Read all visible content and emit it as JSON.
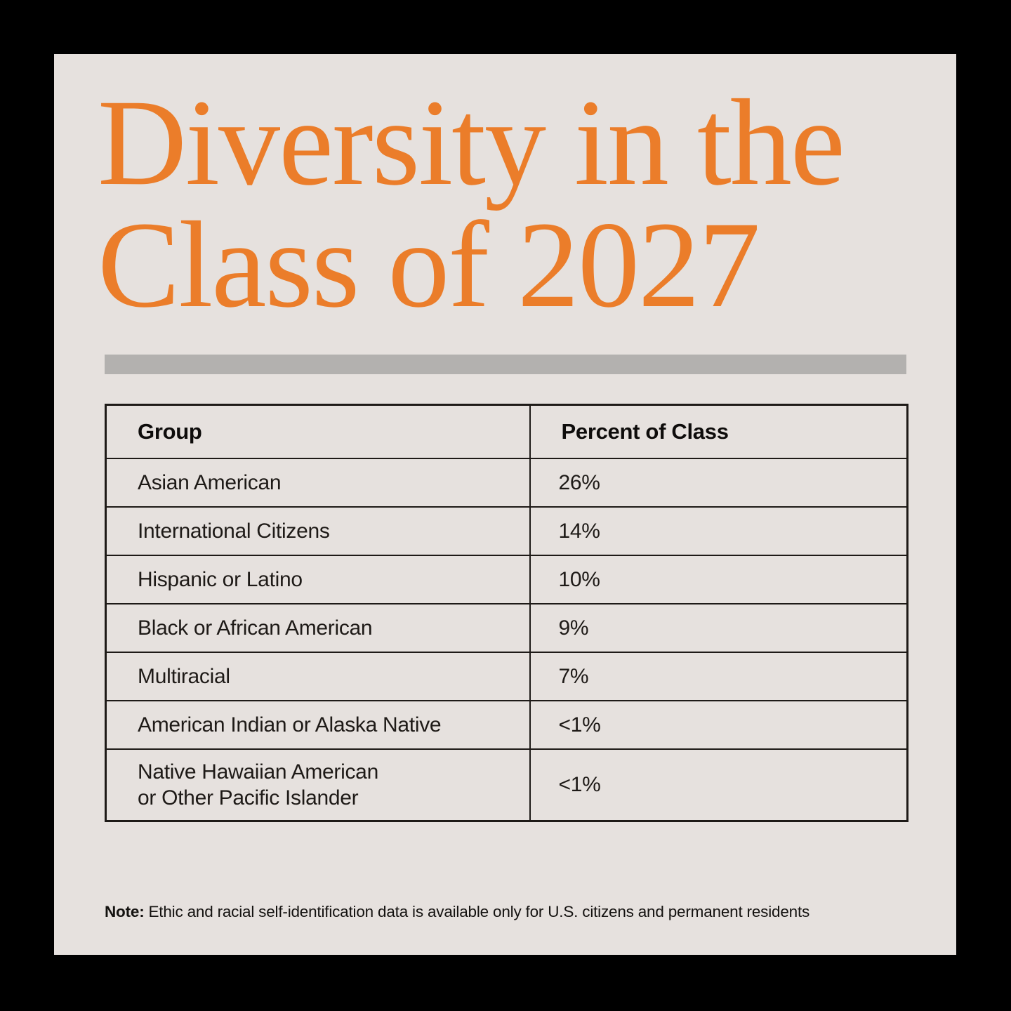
{
  "colors": {
    "background": "#000000",
    "panel": "#E6E1DE",
    "accent_orange": "#EB7D2A",
    "divider_gray": "#B3B1AF",
    "table_border": "#1E1A17",
    "text": "#1E1A17"
  },
  "title": {
    "line1": "Diversity in the",
    "line2": "Class of 2027"
  },
  "chart_data": {
    "type": "table",
    "title": "Diversity in the Class of 2027",
    "columns": [
      "Group",
      "Percent of Class"
    ],
    "rows": [
      [
        "Asian American",
        "26%"
      ],
      [
        "International Citizens",
        "14%"
      ],
      [
        "Hispanic or Latino",
        "10%"
      ],
      [
        "Black or African American",
        "9%"
      ],
      [
        "Multiracial",
        "7%"
      ],
      [
        "American Indian or Alaska Native",
        "<1%"
      ],
      [
        "Native Hawaiian American\nor Other Pacific Islander",
        "<1%"
      ]
    ],
    "values_numeric_percent": [
      26,
      14,
      10,
      9,
      7,
      1,
      1
    ],
    "note": "Ethic and racial self-identification data is available only for U.S. citizens and permanent residents"
  },
  "note": {
    "label": "Note:",
    "text": "Ethic and racial self-identification data is available only for U.S. citizens and permanent residents"
  }
}
